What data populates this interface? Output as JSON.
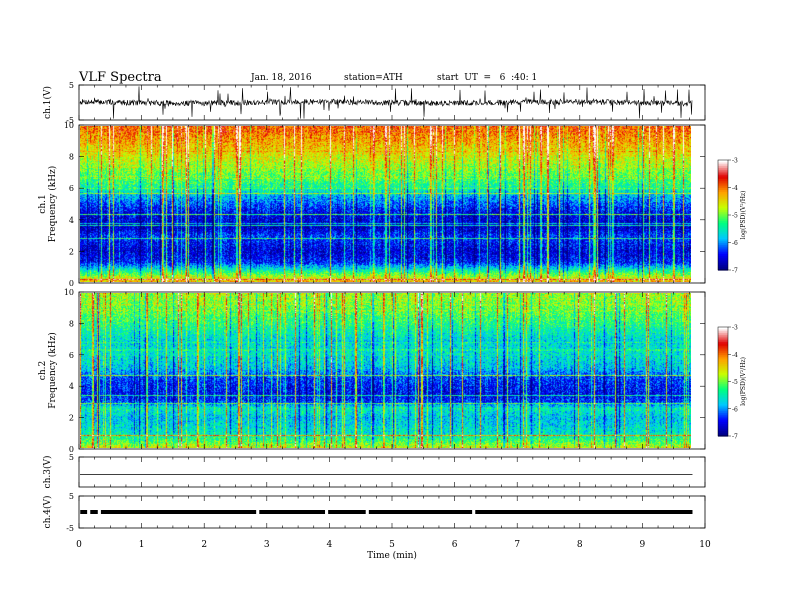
{
  "header": {
    "title": "VLF  Spectra",
    "date": "Jan. 18, 2016",
    "station": "station=ATH",
    "start": "start  UT  =   6  :40: 1"
  },
  "chart_data": [
    {
      "type": "line",
      "panel": "ch1-waveform",
      "ylabel": "ch.1(V)",
      "ylim": [
        -5,
        5
      ],
      "yticks": [
        "5",
        "-5"
      ],
      "xlim": [
        0,
        10
      ],
      "x_data_end": 9.8,
      "series": [
        {
          "values_desc": "noisy waveform around 0 V with frequent spikes"
        }
      ]
    },
    {
      "type": "heatmap",
      "panel": "ch1-spectrogram",
      "ylabel": "ch.1\nFrequency (kHz)",
      "ylim": [
        0,
        10
      ],
      "yticks": [
        "0",
        "2",
        "4",
        "6",
        "8",
        "10"
      ],
      "xlim": [
        0,
        9.8
      ],
      "colorbar": {
        "label": "log(PSD)(V²/Hz)",
        "range": [
          -7,
          -3
        ],
        "ticks": [
          "-3",
          "-4",
          "-5",
          "-6",
          "-7"
        ]
      },
      "profile": [
        [
          0.0,
          -4.2
        ],
        [
          0.4,
          -4.8
        ],
        [
          0.8,
          -5.5
        ],
        [
          1.3,
          -6.4
        ],
        [
          2.0,
          -6.6
        ],
        [
          3.0,
          -6.3
        ],
        [
          3.5,
          -6.7
        ],
        [
          4.5,
          -6.5
        ],
        [
          5.5,
          -5.9
        ],
        [
          6.0,
          -5.4
        ],
        [
          7.0,
          -5.0
        ],
        [
          8.0,
          -4.6
        ],
        [
          9.0,
          -4.2
        ],
        [
          10.0,
          -3.9
        ]
      ]
    },
    {
      "type": "heatmap",
      "panel": "ch2-spectrogram",
      "ylabel": "ch.2\nFrequency (kHz)",
      "ylim": [
        0,
        10
      ],
      "yticks": [
        "0",
        "2",
        "4",
        "6",
        "8",
        "10"
      ],
      "xlim": [
        0,
        9.8
      ],
      "colorbar": {
        "label": "log(PSD)(V²/Hz)",
        "range": [
          -7,
          -3
        ],
        "ticks": [
          "-3",
          "-4",
          "-5",
          "-6",
          "-7"
        ]
      },
      "profile": [
        [
          0.0,
          -4.6
        ],
        [
          0.5,
          -5.2
        ],
        [
          1.0,
          -5.6
        ],
        [
          2.0,
          -5.8
        ],
        [
          2.6,
          -5.5
        ],
        [
          3.0,
          -6.3
        ],
        [
          3.5,
          -6.5
        ],
        [
          4.5,
          -6.3
        ],
        [
          5.2,
          -5.8
        ],
        [
          6.0,
          -5.6
        ],
        [
          7.0,
          -5.7
        ],
        [
          8.0,
          -5.3
        ],
        [
          9.0,
          -5.0
        ],
        [
          10.0,
          -4.8
        ]
      ]
    },
    {
      "type": "line",
      "panel": "ch3-waveform",
      "ylabel": "ch.3(V)",
      "ylim": [
        -5,
        5
      ],
      "yticks": [
        "5"
      ],
      "xlim": [
        0,
        10
      ],
      "series": [
        {
          "values_desc": "flat at 0 V"
        }
      ]
    },
    {
      "type": "line",
      "panel": "ch4-waveform",
      "ylabel": "ch.4(V)",
      "ylim": [
        -5,
        5
      ],
      "yticks": [
        "5",
        "-5"
      ],
      "xlim": [
        0,
        10
      ],
      "series": [
        {
          "values_desc": "thick band near 0 V with short gaps"
        }
      ]
    }
  ],
  "xaxis": {
    "label": "Time  (min)",
    "ticks": [
      "0",
      "1",
      "2",
      "3",
      "4",
      "5",
      "6",
      "7",
      "8",
      "9",
      "10"
    ]
  },
  "colors": {
    "colormap": [
      "#000080",
      "#0000ff",
      "#00c8ff",
      "#00ff80",
      "#c8ff00",
      "#ffa000",
      "#e00000",
      "#ffffff"
    ]
  }
}
